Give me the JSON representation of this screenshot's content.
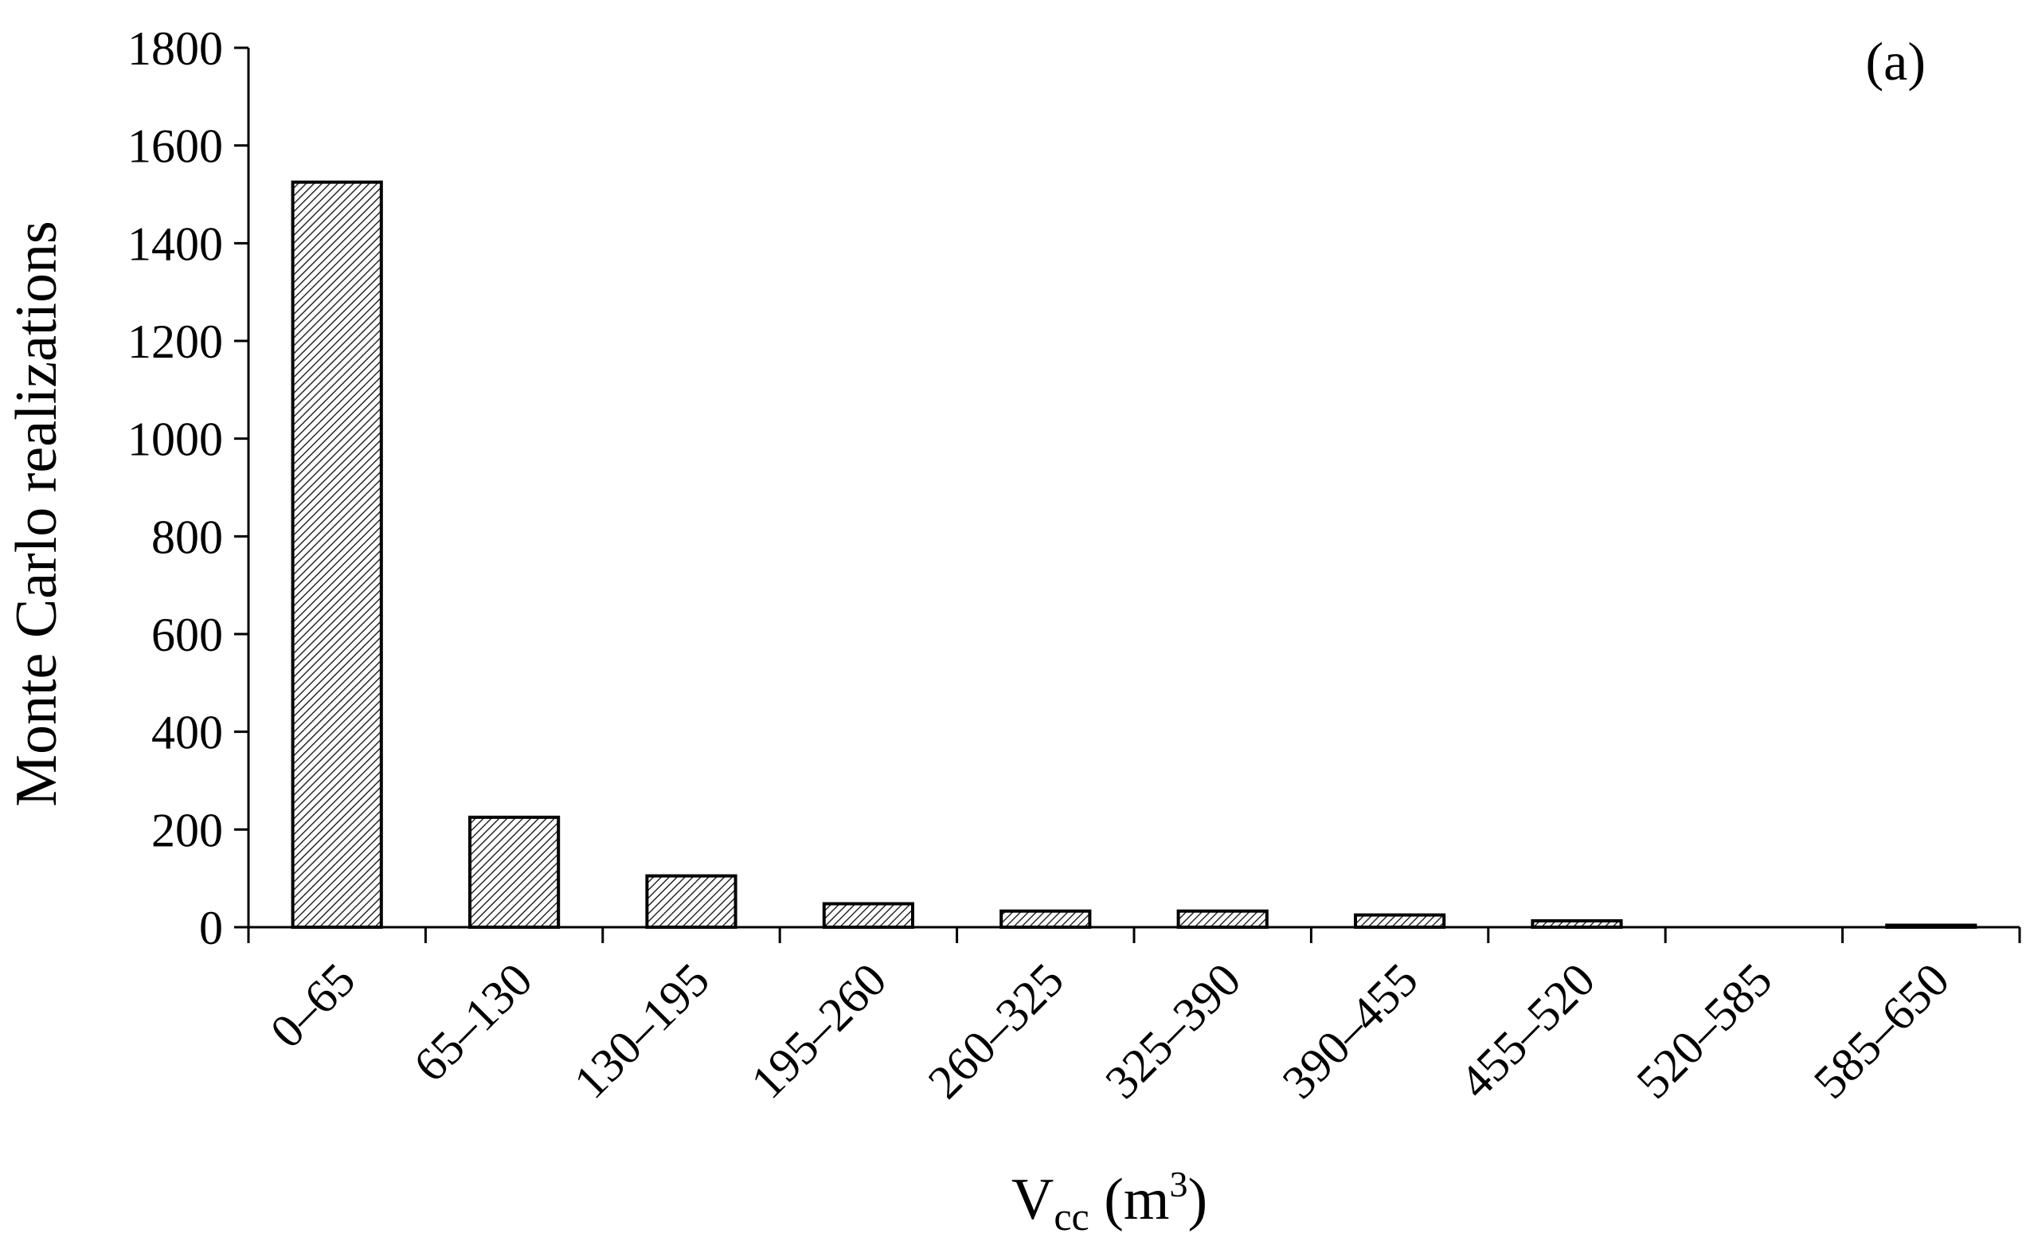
{
  "chart_data": {
    "type": "bar",
    "categories": [
      "0–65",
      "65–130",
      "130–195",
      "195–260",
      "260–325",
      "325–390",
      "390–455",
      "455–520",
      "520–585",
      "585–650"
    ],
    "values": [
      1525,
      225,
      105,
      48,
      33,
      33,
      25,
      13,
      0,
      4
    ],
    "ylim": [
      0,
      1800
    ],
    "yticks": [
      0,
      200,
      400,
      600,
      800,
      1000,
      1200,
      1400,
      1600,
      1800
    ],
    "ylabel": "Monte Carlo realizations",
    "xlabel": {
      "main": "V",
      "subscript": "cc",
      "unit_prefix": " (m",
      "unit_superscript": "3",
      "unit_suffix": ")"
    },
    "annotation": "(a)",
    "grid": false,
    "legend": "none",
    "bar_fill": "hatched-gray",
    "bar_stroke": "#000000"
  }
}
